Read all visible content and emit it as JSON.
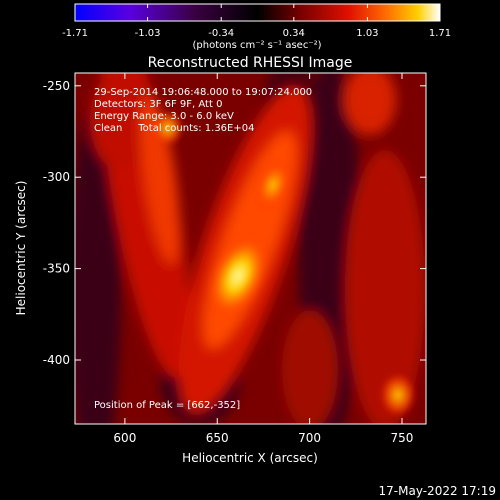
{
  "colorbar": {
    "ticks": [
      "-1.71",
      "-1.03",
      "-0.34",
      "0.34",
      "1.03",
      "1.71"
    ],
    "tick_values": [
      -1.71,
      -1.03,
      -0.34,
      0.34,
      1.03,
      1.71
    ],
    "range": [
      -1.71,
      1.71
    ],
    "unit_text": "(photons cm⁻² s⁻¹ asec⁻²)",
    "colors": [
      "#0000ff",
      "#6600cc",
      "#330033",
      "#000000",
      "#660000",
      "#cc0000",
      "#ff5500",
      "#ffcc00",
      "#ffffff"
    ]
  },
  "title": "Reconstructed RHESSI Image",
  "info": {
    "time": "29-Sep-2014 19:06:48.000 to 19:07:24.000",
    "detectors": "Detectors: 3F 6F 9F, Att 0",
    "energy": "Energy Range: 3.0 - 6.0 keV",
    "clean": "Clean     Total counts: 1.36E+04",
    "peak": "Position of Peak = [662,-352]"
  },
  "axes": {
    "xlabel": "Heliocentric X (arcsec)",
    "ylabel": "Heliocentric Y (arcsec)",
    "xticks": [
      "600",
      "650",
      "700",
      "750"
    ],
    "xtick_values": [
      600,
      650,
      700,
      750
    ],
    "yticks": [
      "-250",
      "-300",
      "-350",
      "-400"
    ],
    "ytick_values": [
      -250,
      -300,
      -350,
      -400
    ],
    "xlim": [
      573,
      763
    ],
    "ylim": [
      -435,
      -243
    ]
  },
  "timestamp": "17-May-2022 17:19"
}
